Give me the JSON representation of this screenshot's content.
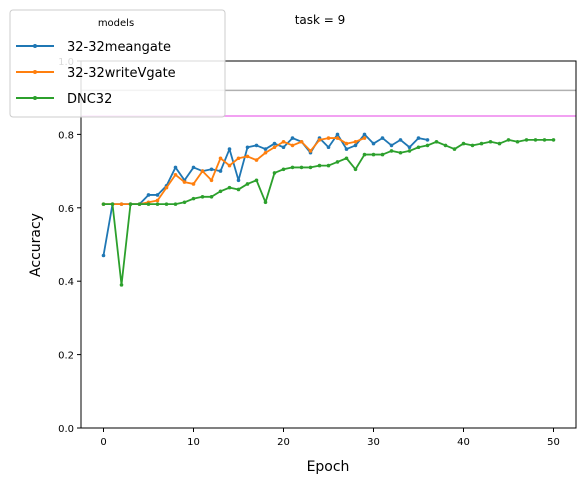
{
  "chart_data": {
    "type": "line",
    "title": "task = 9",
    "xlabel": "Epoch",
    "ylabel": "Accuracy",
    "xlim": [
      -2.5,
      52.5
    ],
    "ylim": [
      0.0,
      1.0
    ],
    "xticks": [
      0,
      10,
      20,
      30,
      40,
      50
    ],
    "yticks": [
      0.0,
      0.2,
      0.4,
      0.6,
      0.8,
      1.0
    ],
    "grid": false,
    "legend": {
      "title": "models",
      "placement": "upper-left"
    },
    "reference_lines": [
      {
        "y": 0.92,
        "color": "#b0b0b0"
      },
      {
        "y": 0.85,
        "color": "#ee82ee"
      }
    ],
    "series": [
      {
        "name": "32-32meangate",
        "color": "#1f77b4",
        "x": [
          0,
          1,
          2,
          3,
          4,
          5,
          6,
          7,
          8,
          9,
          10,
          11,
          12,
          13,
          14,
          15,
          16,
          17,
          18,
          19,
          20,
          21,
          22,
          23,
          24,
          25,
          26,
          27,
          28,
          29,
          30,
          31,
          32,
          33,
          34,
          35,
          36
        ],
        "y": [
          0.47,
          0.61,
          0.61,
          0.61,
          0.61,
          0.635,
          0.635,
          0.66,
          0.71,
          0.675,
          0.71,
          0.7,
          0.705,
          0.7,
          0.76,
          0.675,
          0.765,
          0.77,
          0.76,
          0.775,
          0.765,
          0.79,
          0.78,
          0.75,
          0.79,
          0.765,
          0.8,
          0.76,
          0.77,
          0.8,
          0.775,
          0.79,
          0.77,
          0.785,
          0.765,
          0.79,
          0.785
        ]
      },
      {
        "name": "32-32writeVgate",
        "color": "#ff7f0e",
        "x": [
          0,
          1,
          2,
          3,
          4,
          5,
          6,
          7,
          8,
          9,
          10,
          11,
          12,
          13,
          14,
          15,
          16,
          17,
          18,
          19,
          20,
          21,
          22,
          23,
          24,
          25,
          26,
          27,
          28,
          29
        ],
        "y": [
          0.61,
          0.61,
          0.61,
          0.61,
          0.61,
          0.615,
          0.62,
          0.655,
          0.69,
          0.67,
          0.665,
          0.7,
          0.675,
          0.735,
          0.715,
          0.735,
          0.74,
          0.73,
          0.75,
          0.765,
          0.78,
          0.77,
          0.78,
          0.755,
          0.785,
          0.79,
          0.79,
          0.775,
          0.78,
          0.79
        ]
      },
      {
        "name": "DNC32",
        "color": "#2ca02c",
        "x": [
          0,
          1,
          2,
          3,
          4,
          5,
          6,
          7,
          8,
          9,
          10,
          11,
          12,
          13,
          14,
          15,
          16,
          17,
          18,
          19,
          20,
          21,
          22,
          23,
          24,
          25,
          26,
          27,
          28,
          29,
          30,
          31,
          32,
          33,
          34,
          35,
          36,
          37,
          38,
          39,
          40,
          41,
          42,
          43,
          44,
          45,
          46,
          47,
          48,
          49,
          50
        ],
        "y": [
          0.61,
          0.61,
          0.39,
          0.61,
          0.61,
          0.61,
          0.61,
          0.61,
          0.61,
          0.615,
          0.625,
          0.63,
          0.63,
          0.645,
          0.655,
          0.65,
          0.665,
          0.675,
          0.615,
          0.695,
          0.705,
          0.71,
          0.71,
          0.71,
          0.715,
          0.715,
          0.725,
          0.735,
          0.705,
          0.745,
          0.745,
          0.745,
          0.755,
          0.75,
          0.755,
          0.765,
          0.77,
          0.78,
          0.77,
          0.76,
          0.775,
          0.77,
          0.775,
          0.78,
          0.775,
          0.785,
          0.78,
          0.785,
          0.785,
          0.785,
          0.785
        ]
      }
    ]
  }
}
